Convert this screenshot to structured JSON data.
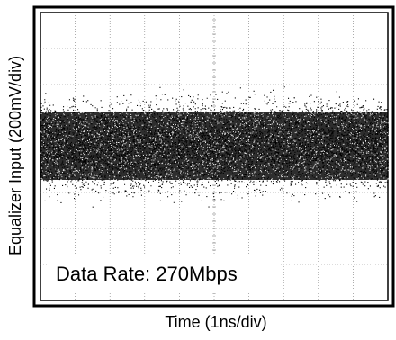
{
  "chart_data": {
    "type": "scatter",
    "title": "",
    "xlabel": "Time (1ns/div)",
    "ylabel": "Equalizer Input (200mV/div)",
    "annotation": "Data Rate: 270Mbps",
    "grid": true,
    "x_divisions": 10,
    "y_divisions": 8,
    "xlim": [
      0,
      10
    ],
    "ylim": [
      -4,
      4
    ],
    "description": "",
    "noise_band": {
      "center_div": 0.3,
      "core_half_width_div": 0.95,
      "outer_half_width_div": 1.75
    },
    "colors": {
      "trace": "#000000",
      "grid": "#777777",
      "frame": "#000000",
      "background": "#ffffff"
    }
  }
}
